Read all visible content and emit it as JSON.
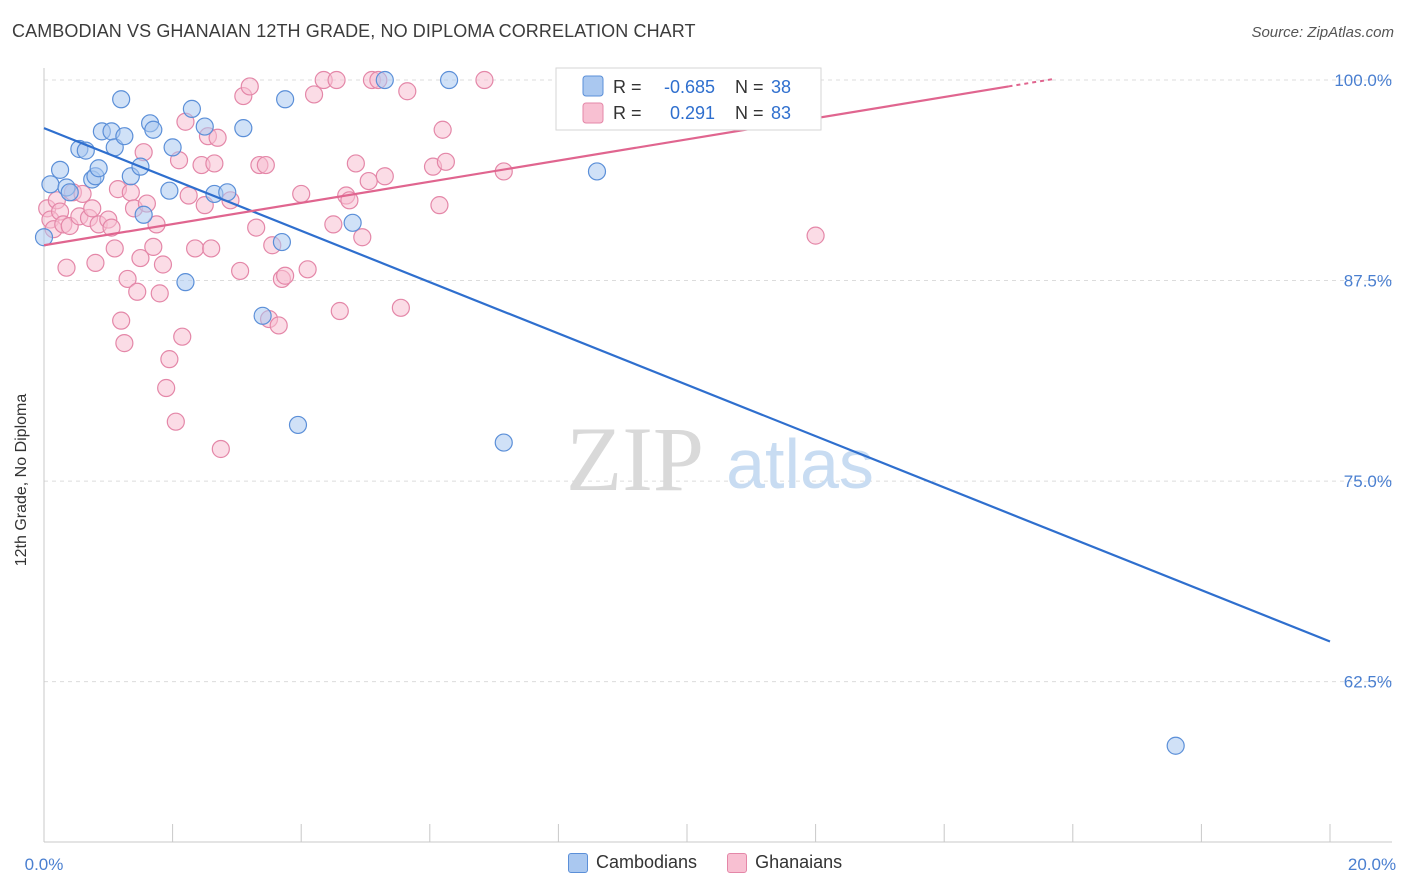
{
  "title": "CAMBODIAN VS GHANAIAN 12TH GRADE, NO DIPLOMA CORRELATION CHART",
  "source": "Source: ZipAtlas.com",
  "watermark": {
    "zip": "ZIP",
    "atlas": "atlas"
  },
  "colors": {
    "blue_fill": "#aac8f0",
    "blue_stroke": "#5b8fd8",
    "blue_line": "#2f6fce",
    "pink_fill": "#f8c0d2",
    "pink_stroke": "#e487a8",
    "pink_line": "#e0658f",
    "axis_text": "#4a7fd0",
    "grid": "#dcdcdc"
  },
  "legend": {
    "rows": [
      {
        "r_label": "R =",
        "r_value": "-0.685",
        "n_label": "N =",
        "n_value": "38"
      },
      {
        "r_label": "R =",
        "r_value": "0.291",
        "n_label": "N =",
        "n_value": "83"
      }
    ]
  },
  "chart_data": {
    "type": "scatter",
    "title": "CAMBODIAN VS GHANAIAN 12TH GRADE, NO DIPLOMA CORRELATION CHART",
    "xlabel": "",
    "ylabel": "12th Grade, No Diploma",
    "xlim": [
      0,
      20
    ],
    "ylim": [
      52.5,
      100.5
    ],
    "x_tick_labels": [
      "0.0%",
      "20.0%"
    ],
    "y_ticks": [
      62.5,
      75.0,
      87.5,
      100.0
    ],
    "y_tick_labels": [
      "62.5%",
      "75.0%",
      "87.5%",
      "100.0%"
    ],
    "grid": true,
    "legend_position": "bottom-center",
    "series": [
      {
        "name": "Cambodians",
        "color": "#aac8f0",
        "trend": {
          "x": [
            0,
            20
          ],
          "y": [
            97.0,
            65.0
          ]
        },
        "points": [
          [
            0.0,
            90.2
          ],
          [
            0.1,
            93.5
          ],
          [
            0.25,
            94.4
          ],
          [
            0.35,
            93.3
          ],
          [
            0.4,
            93.0
          ],
          [
            0.55,
            95.7
          ],
          [
            0.65,
            95.6
          ],
          [
            0.75,
            93.8
          ],
          [
            0.8,
            94.0
          ],
          [
            0.85,
            94.5
          ],
          [
            0.9,
            96.8
          ],
          [
            1.05,
            96.8
          ],
          [
            1.1,
            95.8
          ],
          [
            1.25,
            96.5
          ],
          [
            1.2,
            98.8
          ],
          [
            1.35,
            94.0
          ],
          [
            1.5,
            94.6
          ],
          [
            1.55,
            91.6
          ],
          [
            1.65,
            97.3
          ],
          [
            1.7,
            96.9
          ],
          [
            1.95,
            93.1
          ],
          [
            2.0,
            95.8
          ],
          [
            2.2,
            87.4
          ],
          [
            2.3,
            98.2
          ],
          [
            2.5,
            97.1
          ],
          [
            2.65,
            92.9
          ],
          [
            2.85,
            93.0
          ],
          [
            3.1,
            97.0
          ],
          [
            3.4,
            85.3
          ],
          [
            3.7,
            89.9
          ],
          [
            3.75,
            98.8
          ],
          [
            3.95,
            78.5
          ],
          [
            4.8,
            91.1
          ],
          [
            5.3,
            100.0
          ],
          [
            6.3,
            100.0
          ],
          [
            7.15,
            77.4
          ],
          [
            8.6,
            94.3
          ],
          [
            17.6,
            58.5
          ]
        ]
      },
      {
        "name": "Ghanaians",
        "color": "#f8c0d2",
        "trend": {
          "x": [
            0,
            15
          ],
          "y": [
            89.7,
            99.6
          ]
        },
        "points": [
          [
            0.05,
            92.0
          ],
          [
            0.1,
            91.3
          ],
          [
            0.15,
            90.7
          ],
          [
            0.2,
            92.5
          ],
          [
            0.25,
            91.8
          ],
          [
            0.3,
            91.0
          ],
          [
            0.35,
            88.3
          ],
          [
            0.4,
            90.9
          ],
          [
            0.45,
            93.0
          ],
          [
            0.55,
            91.5
          ],
          [
            0.6,
            92.9
          ],
          [
            0.7,
            91.4
          ],
          [
            0.75,
            92.0
          ],
          [
            0.8,
            88.6
          ],
          [
            0.85,
            91.0
          ],
          [
            1.0,
            91.3
          ],
          [
            1.05,
            90.8
          ],
          [
            1.1,
            89.5
          ],
          [
            1.15,
            93.2
          ],
          [
            1.2,
            85.0
          ],
          [
            1.25,
            83.6
          ],
          [
            1.3,
            87.6
          ],
          [
            1.35,
            93.0
          ],
          [
            1.4,
            92.0
          ],
          [
            1.45,
            86.8
          ],
          [
            1.5,
            88.9
          ],
          [
            1.55,
            95.5
          ],
          [
            1.6,
            92.3
          ],
          [
            1.7,
            89.6
          ],
          [
            1.75,
            91.0
          ],
          [
            1.8,
            86.7
          ],
          [
            1.85,
            88.5
          ],
          [
            1.9,
            80.8
          ],
          [
            1.95,
            82.6
          ],
          [
            2.05,
            78.7
          ],
          [
            2.1,
            95.0
          ],
          [
            2.15,
            84.0
          ],
          [
            2.2,
            97.4
          ],
          [
            2.25,
            92.8
          ],
          [
            2.35,
            89.5
          ],
          [
            2.45,
            94.7
          ],
          [
            2.5,
            92.2
          ],
          [
            2.55,
            96.5
          ],
          [
            2.6,
            89.5
          ],
          [
            2.65,
            94.8
          ],
          [
            2.7,
            96.4
          ],
          [
            2.75,
            77.0
          ],
          [
            2.9,
            92.5
          ],
          [
            3.05,
            88.1
          ],
          [
            3.1,
            99.0
          ],
          [
            3.2,
            99.6
          ],
          [
            3.3,
            90.8
          ],
          [
            3.35,
            94.7
          ],
          [
            3.45,
            94.7
          ],
          [
            3.5,
            85.1
          ],
          [
            3.55,
            89.7
          ],
          [
            3.65,
            84.7
          ],
          [
            3.7,
            87.6
          ],
          [
            3.75,
            87.8
          ],
          [
            4.0,
            92.9
          ],
          [
            4.1,
            88.2
          ],
          [
            4.2,
            99.1
          ],
          [
            4.35,
            100.0
          ],
          [
            4.5,
            91.0
          ],
          [
            4.55,
            100.0
          ],
          [
            4.6,
            85.6
          ],
          [
            4.7,
            92.8
          ],
          [
            4.75,
            92.5
          ],
          [
            4.85,
            94.8
          ],
          [
            4.95,
            90.2
          ],
          [
            5.05,
            93.7
          ],
          [
            5.1,
            100.0
          ],
          [
            5.2,
            100.0
          ],
          [
            5.3,
            94.0
          ],
          [
            5.55,
            85.8
          ],
          [
            5.65,
            99.3
          ],
          [
            6.05,
            94.6
          ],
          [
            6.15,
            92.2
          ],
          [
            6.2,
            96.9
          ],
          [
            6.25,
            94.9
          ],
          [
            6.85,
            100.0
          ],
          [
            7.15,
            94.3
          ],
          [
            12.0,
            90.3
          ]
        ]
      }
    ]
  }
}
